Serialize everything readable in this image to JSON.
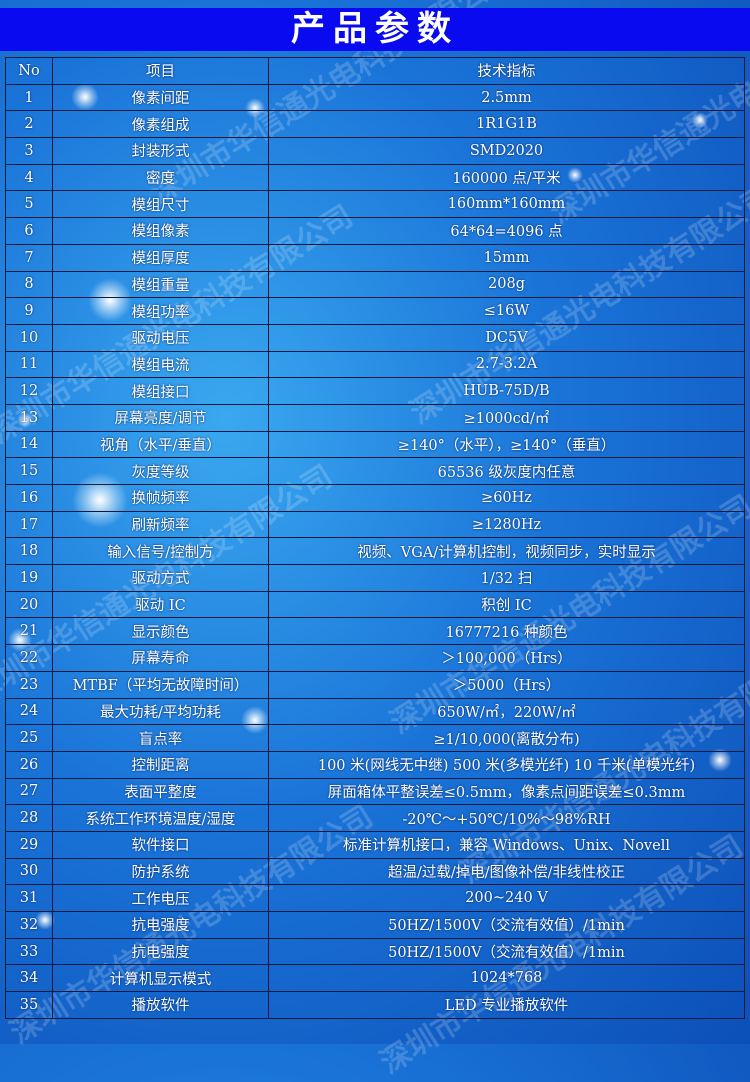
{
  "title": "产品参数",
  "watermark": "深圳市华信通光电科技有限公司",
  "columns": [
    "No",
    "项目",
    "技术指标"
  ],
  "rows": [
    [
      "1",
      "像素间距",
      "2.5mm"
    ],
    [
      "2",
      "像素组成",
      "1R1G1B"
    ],
    [
      "3",
      "封装形式",
      "SMD2020"
    ],
    [
      "4",
      "密度",
      "160000 点/平米"
    ],
    [
      "5",
      "模组尺寸",
      "160mm*160mm"
    ],
    [
      "6",
      "模组像素",
      "64*64=4096 点"
    ],
    [
      "7",
      "模组厚度",
      "15mm"
    ],
    [
      "8",
      "模组重量",
      "208g"
    ],
    [
      "9",
      "模组功率",
      "≤16W"
    ],
    [
      "10",
      "驱动电压",
      "DC5V"
    ],
    [
      "11",
      "模组电流",
      "2.7-3.2A"
    ],
    [
      "12",
      "模组接口",
      "HUB-75D/B"
    ],
    [
      "13",
      "屏幕亮度/调节",
      "≥1000cd/㎡"
    ],
    [
      "14",
      "视角（水平/垂直）",
      "≥140°（水平），≥140°（垂直）"
    ],
    [
      "15",
      "灰度等级",
      "65536 级灰度内任意"
    ],
    [
      "16",
      "换帧频率",
      "≥60Hz"
    ],
    [
      "17",
      "刷新频率",
      "≥1280Hz"
    ],
    [
      "18",
      "输入信号/控制方",
      "视频、VGA/计算机控制，视频同步，实时显示"
    ],
    [
      "19",
      "驱动方式",
      "1/32 扫"
    ],
    [
      "20",
      "驱动 IC",
      "积创 IC"
    ],
    [
      "21",
      "显示颜色",
      "16777216 种颜色"
    ],
    [
      "22",
      "屏幕寿命",
      "＞100,000（Hrs）"
    ],
    [
      "23",
      "MTBF（平均无故障时间）",
      "＞5000（Hrs）"
    ],
    [
      "24",
      "最大功耗/平均功耗",
      "650W/㎡，220W/㎡"
    ],
    [
      "25",
      "盲点率",
      "≥1/10,000(离散分布)"
    ],
    [
      "26",
      "控制距离",
      "100 米(网线无中继) 500 米(多模光纤) 10 千米(单模光纤)"
    ],
    [
      "27",
      "表面平整度",
      "屏面箱体平整误差≤0.5mm，像素点间距误差≤0.3mm"
    ],
    [
      "28",
      "系统工作环境温度/湿度",
      "-20℃～+50℃/10%～98%RH"
    ],
    [
      "29",
      "软件接口",
      "标准计算机接口，兼容 Windows、Unix、Novell"
    ],
    [
      "30",
      "防护系统",
      "超温/过载/掉电/图像补偿/非线性校正"
    ],
    [
      "31",
      "工作电压",
      "200~240 V"
    ],
    [
      "32",
      "抗电强度",
      "50HZ/1500V（交流有效值）/1min"
    ],
    [
      "33",
      "抗电强度",
      "50HZ/1500V（交流有效值）/1min"
    ],
    [
      "34",
      "计算机显示模式",
      "1024*768"
    ],
    [
      "35",
      "播放软件",
      "LED 专业播放软件"
    ]
  ]
}
